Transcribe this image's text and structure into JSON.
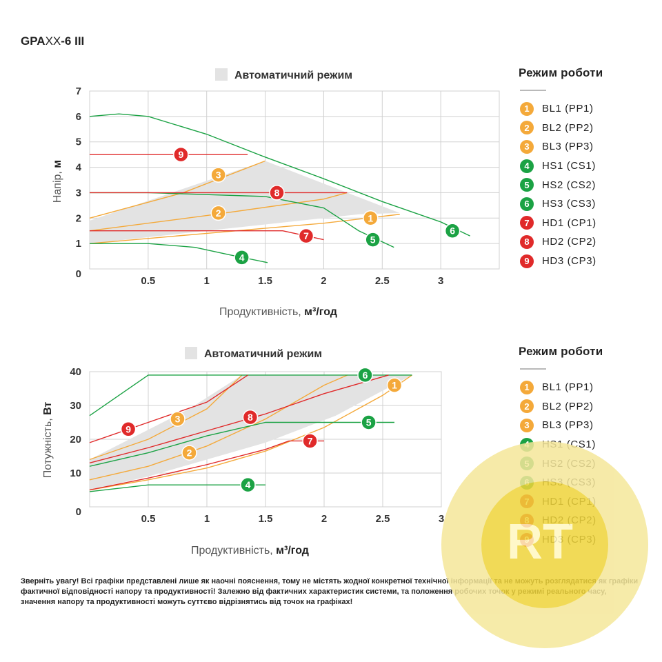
{
  "model": {
    "bold1": "GPA",
    "thin": "XX",
    "bold2": "-6 III"
  },
  "colors": {
    "orange": "#f4a93a",
    "green": "#1ba244",
    "red": "#e02a2a",
    "auto_fill": "#e3e3e3",
    "grid": "#d0d0d0"
  },
  "chart_data": [
    {
      "type": "line",
      "title": "Автоматичний режим",
      "xlabel": "Продуктивність,",
      "xlabel_unit": "м³/год",
      "ylabel": "Напір,",
      "ylabel_unit": "м",
      "xlim": [
        0,
        3.5
      ],
      "ylim": [
        0,
        7
      ],
      "x_ticks": [
        "0.5",
        "1",
        "1.5",
        "2",
        "2.5",
        "3"
      ],
      "y_ticks": [
        "1",
        "2",
        "3",
        "4",
        "5",
        "6",
        "7"
      ],
      "origin_label": "0",
      "grid": true,
      "legend_position": "right",
      "auto_region": [
        [
          0,
          1.0
        ],
        [
          0,
          1.9
        ],
        [
          1.5,
          4.25
        ],
        [
          2.2,
          3.0
        ],
        [
          2.65,
          2.2
        ],
        [
          2.3,
          2.15
        ],
        [
          0,
          1.0
        ]
      ],
      "series": [
        {
          "id": "1",
          "name": "BL1 (PP1)",
          "color": "orange",
          "points": [
            [
              0,
              1.0
            ],
            [
              1.0,
              1.4
            ],
            [
              2.0,
              1.8
            ],
            [
              2.65,
              2.15
            ]
          ],
          "marker": [
            2.4,
            2.0
          ]
        },
        {
          "id": "2",
          "name": "BL2 (PP2)",
          "color": "orange",
          "points": [
            [
              0,
              1.5
            ],
            [
              1.0,
              2.1
            ],
            [
              2.0,
              2.75
            ],
            [
              2.2,
              3.0
            ]
          ],
          "marker": [
            1.1,
            2.2
          ]
        },
        {
          "id": "3",
          "name": "BL3 (PP3)",
          "color": "orange",
          "points": [
            [
              0,
              2.0
            ],
            [
              0.8,
              3.0
            ],
            [
              1.5,
              4.25
            ]
          ],
          "marker": [
            1.1,
            3.7
          ]
        },
        {
          "id": "4",
          "name": "HS1 (CS1)",
          "color": "green",
          "points": [
            [
              0,
              1.0
            ],
            [
              0.5,
              1.0
            ],
            [
              0.9,
              0.85
            ],
            [
              1.2,
              0.55
            ],
            [
              1.52,
              0.25
            ]
          ],
          "marker": [
            1.3,
            0.45
          ]
        },
        {
          "id": "5",
          "name": "HS2 (CS2)",
          "color": "green",
          "points": [
            [
              0,
              3.0
            ],
            [
              0.5,
              3.0
            ],
            [
              1.5,
              2.85
            ],
            [
              2.0,
              2.4
            ],
            [
              2.3,
              1.5
            ],
            [
              2.6,
              0.85
            ]
          ],
          "marker": [
            2.42,
            1.15
          ]
        },
        {
          "id": "6",
          "name": "HS3 (CS3)",
          "color": "green",
          "points": [
            [
              0,
              6.0
            ],
            [
              0.25,
              6.1
            ],
            [
              0.5,
              6.0
            ],
            [
              1.0,
              5.3
            ],
            [
              1.5,
              4.4
            ],
            [
              2.0,
              3.55
            ],
            [
              2.5,
              2.65
            ],
            [
              3.0,
              1.85
            ],
            [
              3.25,
              1.3
            ]
          ],
          "marker": [
            3.1,
            1.5
          ]
        },
        {
          "id": "7",
          "name": "HD1 (CP1)",
          "color": "red",
          "points": [
            [
              0,
              1.5
            ],
            [
              1.65,
              1.5
            ],
            [
              2.0,
              1.15
            ]
          ],
          "marker": [
            1.85,
            1.3
          ]
        },
        {
          "id": "8",
          "name": "HD2 (CP2)",
          "color": "red",
          "points": [
            [
              0,
              3.0
            ],
            [
              2.2,
              3.0
            ]
          ],
          "marker": [
            1.6,
            3.0
          ]
        },
        {
          "id": "9",
          "name": "HD3 (CP3)",
          "color": "red",
          "points": [
            [
              0,
              4.5
            ],
            [
              1.35,
              4.5
            ]
          ],
          "marker": [
            0.78,
            4.5
          ]
        }
      ]
    },
    {
      "type": "line",
      "title": "Автоматичний режим",
      "xlabel": "Продуктивність,",
      "xlabel_unit": "м³/год",
      "ylabel": "Потужність,",
      "ylabel_unit": "Вт",
      "xlim": [
        0,
        3
      ],
      "ylim": [
        0,
        40
      ],
      "x_ticks": [
        "0.5",
        "1",
        "1.5",
        "2",
        "2.5",
        "3"
      ],
      "y_ticks": [
        "10",
        "20",
        "30",
        "40"
      ],
      "origin_label": "0",
      "grid": true,
      "legend_position": "right",
      "auto_region": [
        [
          0,
          5.0
        ],
        [
          0,
          14.0
        ],
        [
          0.85,
          29.0
        ],
        [
          1.3,
          39.0
        ],
        [
          2.75,
          39.0
        ],
        [
          2.1,
          27.0
        ],
        [
          1.5,
          19.0
        ],
        [
          0.5,
          9.0
        ],
        [
          0,
          5.0
        ]
      ],
      "series": [
        {
          "id": "1",
          "name": "BL1 (PP1)",
          "color": "orange",
          "points": [
            [
              0,
              5.0
            ],
            [
              0.5,
              8.0
            ],
            [
              1.0,
              11.5
            ],
            [
              1.5,
              16.5
            ],
            [
              2.0,
              23.5
            ],
            [
              2.5,
              33.0
            ],
            [
              2.75,
              39.0
            ]
          ],
          "marker": [
            2.6,
            36.0
          ]
        },
        {
          "id": "2",
          "name": "BL2 (PP2)",
          "color": "orange",
          "points": [
            [
              0,
              8.0
            ],
            [
              0.5,
              12.0
            ],
            [
              1.0,
              18.0
            ],
            [
              1.5,
              26.0
            ],
            [
              2.0,
              36.0
            ],
            [
              2.2,
              39.0
            ]
          ],
          "marker": [
            0.85,
            16.0
          ]
        },
        {
          "id": "3",
          "name": "BL3 (PP3)",
          "color": "orange",
          "points": [
            [
              0,
              14.0
            ],
            [
              0.5,
              20.0
            ],
            [
              1.0,
              29.0
            ],
            [
              1.3,
              39.0
            ]
          ],
          "marker": [
            0.75,
            26.0
          ]
        },
        {
          "id": "4",
          "name": "HS1 (CS1)",
          "color": "green",
          "points": [
            [
              0,
              4.5
            ],
            [
              0.5,
              6.5
            ],
            [
              1.5,
              6.5
            ]
          ],
          "marker": [
            1.35,
            6.5
          ]
        },
        {
          "id": "5",
          "name": "HS2 (CS2)",
          "color": "green",
          "points": [
            [
              0,
              12.0
            ],
            [
              0.5,
              16.0
            ],
            [
              1.0,
              21.0
            ],
            [
              1.5,
              25.0
            ],
            [
              2.6,
              25.0
            ]
          ],
          "marker": [
            2.38,
            25.0
          ]
        },
        {
          "id": "6",
          "name": "HS3 (CS3)",
          "color": "green",
          "points": [
            [
              0,
              27.0
            ],
            [
              0.5,
              39.0
            ],
            [
              2.75,
              39.0
            ]
          ],
          "marker": [
            2.35,
            39.0
          ]
        },
        {
          "id": "7",
          "name": "HD1 (CP1)",
          "color": "red",
          "points": [
            [
              0,
              5.0
            ],
            [
              0.5,
              8.5
            ],
            [
              1.0,
              12.5
            ],
            [
              1.5,
              17.0
            ],
            [
              1.7,
              19.5
            ],
            [
              2.0,
              19.5
            ]
          ],
          "marker": [
            1.88,
            19.5
          ]
        },
        {
          "id": "8",
          "name": "HD2 (CP2)",
          "color": "red",
          "points": [
            [
              0,
              13.0
            ],
            [
              0.5,
              17.5
            ],
            [
              1.0,
              22.5
            ],
            [
              1.5,
              27.5
            ],
            [
              2.0,
              33.5
            ],
            [
              2.55,
              39.0
            ]
          ],
          "marker": [
            1.37,
            26.5
          ]
        },
        {
          "id": "9",
          "name": "HD3 (CP3)",
          "color": "red",
          "points": [
            [
              0,
              19.0
            ],
            [
              0.5,
              25.0
            ],
            [
              1.0,
              31.0
            ],
            [
              1.35,
              39.0
            ]
          ],
          "marker": [
            0.33,
            23.0
          ]
        }
      ]
    }
  ],
  "legend": {
    "title": "Режим роботи",
    "items": [
      {
        "num": "1",
        "label": "BL1 (PP1)",
        "color": "orange"
      },
      {
        "num": "2",
        "label": "BL2 (PP2)",
        "color": "orange"
      },
      {
        "num": "3",
        "label": "BL3 (PP3)",
        "color": "orange"
      },
      {
        "num": "4",
        "label": "HS1 (CS1)",
        "color": "green"
      },
      {
        "num": "5",
        "label": "HS2 (CS2)",
        "color": "green"
      },
      {
        "num": "6",
        "label": "HS3 (CS3)",
        "color": "green"
      },
      {
        "num": "7",
        "label": "HD1 (CP1)",
        "color": "red"
      },
      {
        "num": "8",
        "label": "HD2 (CP2)",
        "color": "red"
      },
      {
        "num": "9",
        "label": "HD3 (CP3)",
        "color": "red"
      }
    ]
  },
  "note": "Зверніть увагу! Всі графіки представлені лише як наочні пояснення, тому не містять жодної конкретної технічної інформації та не можуть розглядатися як графіки фактичної відповідності напору та продуктивності! Залежно від фактичних характеристик системи, та положення робочих точок у режимі реального часу, значення напору та продуктивності можуть суттєво відрізнятись від точок на графіках!",
  "watermark": {
    "logo": "RT"
  }
}
